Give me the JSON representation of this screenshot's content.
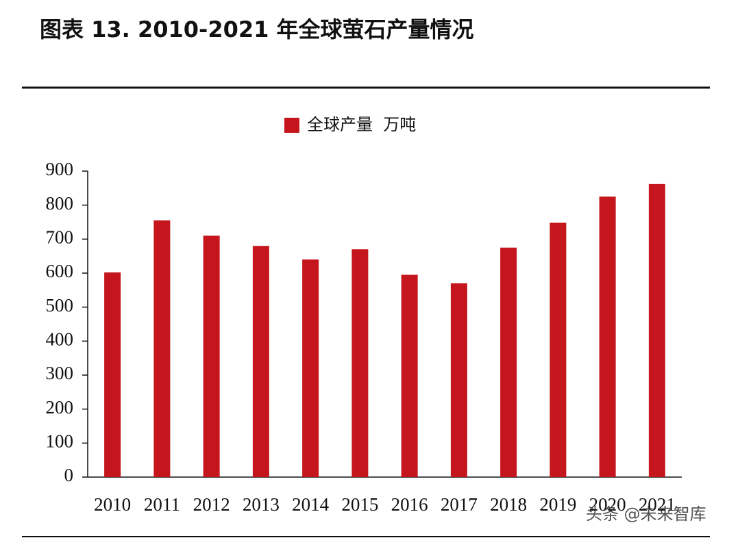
{
  "chart_data": {
    "type": "bar",
    "title": "图表 13. 2010-2021 年全球萤石产量情况",
    "categories": [
      "2010",
      "2011",
      "2012",
      "2013",
      "2014",
      "2015",
      "2016",
      "2017",
      "2018",
      "2019",
      "2020",
      "2021"
    ],
    "series": [
      {
        "name": "全球产量  万吨",
        "color": "#c4161c",
        "values": [
          602,
          755,
          710,
          680,
          640,
          670,
          595,
          570,
          675,
          748,
          825,
          862
        ]
      }
    ],
    "ylim": [
      0,
      900
    ],
    "yticks": [
      0,
      100,
      200,
      300,
      400,
      500,
      600,
      700,
      800,
      900
    ],
    "watermark": "头条 @未来智库"
  }
}
